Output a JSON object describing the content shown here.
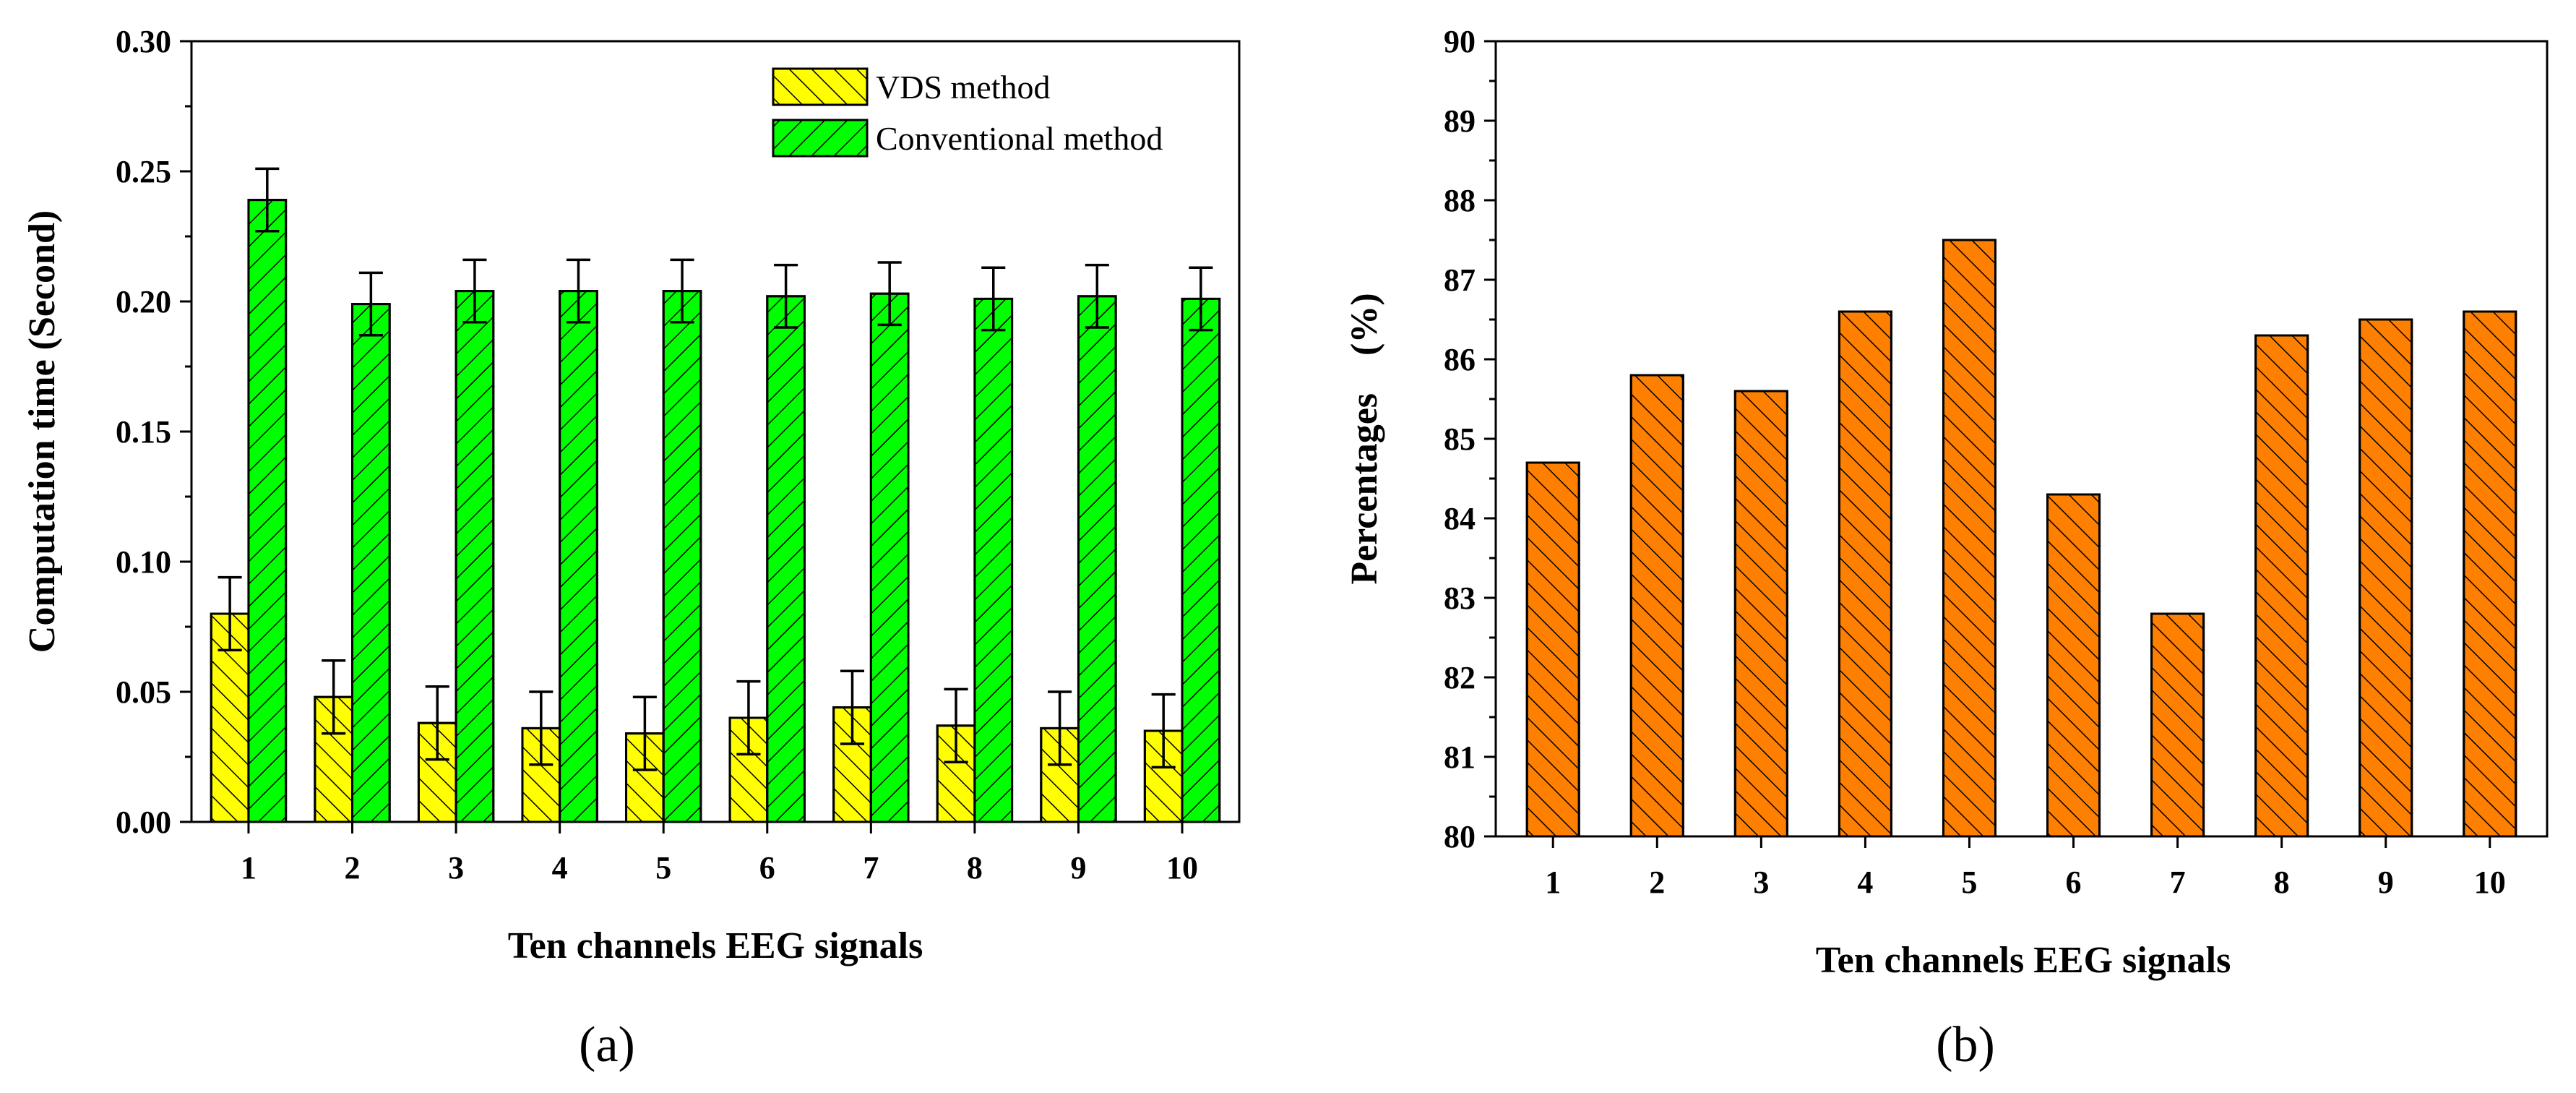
{
  "chart_data": [
    {
      "type": "bar",
      "panel_label": "(a)",
      "xlabel": "Ten channels EEG signals",
      "ylabel": "Computation time (Second)",
      "categories": [
        "1",
        "2",
        "3",
        "4",
        "5",
        "6",
        "7",
        "8",
        "9",
        "10"
      ],
      "ylim": [
        0,
        0.3
      ],
      "yticks": [
        "0.00",
        "0.05",
        "0.10",
        "0.15",
        "0.20",
        "0.25",
        "0.30"
      ],
      "legend_position": "top-right",
      "series": [
        {
          "name": "VDS method",
          "color": "#ffff00",
          "hatch": "backslash",
          "values": [
            0.08,
            0.048,
            0.038,
            0.036,
            0.034,
            0.04,
            0.044,
            0.037,
            0.036,
            0.035
          ],
          "errors": [
            0.014,
            0.014,
            0.014,
            0.014,
            0.014,
            0.014,
            0.014,
            0.014,
            0.014,
            0.014
          ]
        },
        {
          "name": "Conventional method",
          "color": "#00ff00",
          "hatch": "slash",
          "values": [
            0.239,
            0.199,
            0.204,
            0.204,
            0.204,
            0.202,
            0.203,
            0.201,
            0.202,
            0.201
          ],
          "errors": [
            0.012,
            0.012,
            0.012,
            0.012,
            0.012,
            0.012,
            0.012,
            0.012,
            0.012,
            0.012
          ]
        }
      ]
    },
    {
      "type": "bar",
      "panel_label": "(b)",
      "xlabel": "Ten channels EEG signals",
      "ylabel": "Percentages    (%)",
      "categories": [
        "1",
        "2",
        "3",
        "4",
        "5",
        "6",
        "7",
        "8",
        "9",
        "10"
      ],
      "ylim": [
        80,
        90
      ],
      "yticks": [
        "80",
        "81",
        "82",
        "83",
        "84",
        "85",
        "86",
        "87",
        "88",
        "89",
        "90"
      ],
      "series": [
        {
          "name": "Percentages",
          "color": "#ff8000",
          "hatch": "backslash",
          "values": [
            84.7,
            85.8,
            85.6,
            86.6,
            87.5,
            84.3,
            82.8,
            86.3,
            86.5,
            86.6
          ]
        }
      ]
    }
  ]
}
